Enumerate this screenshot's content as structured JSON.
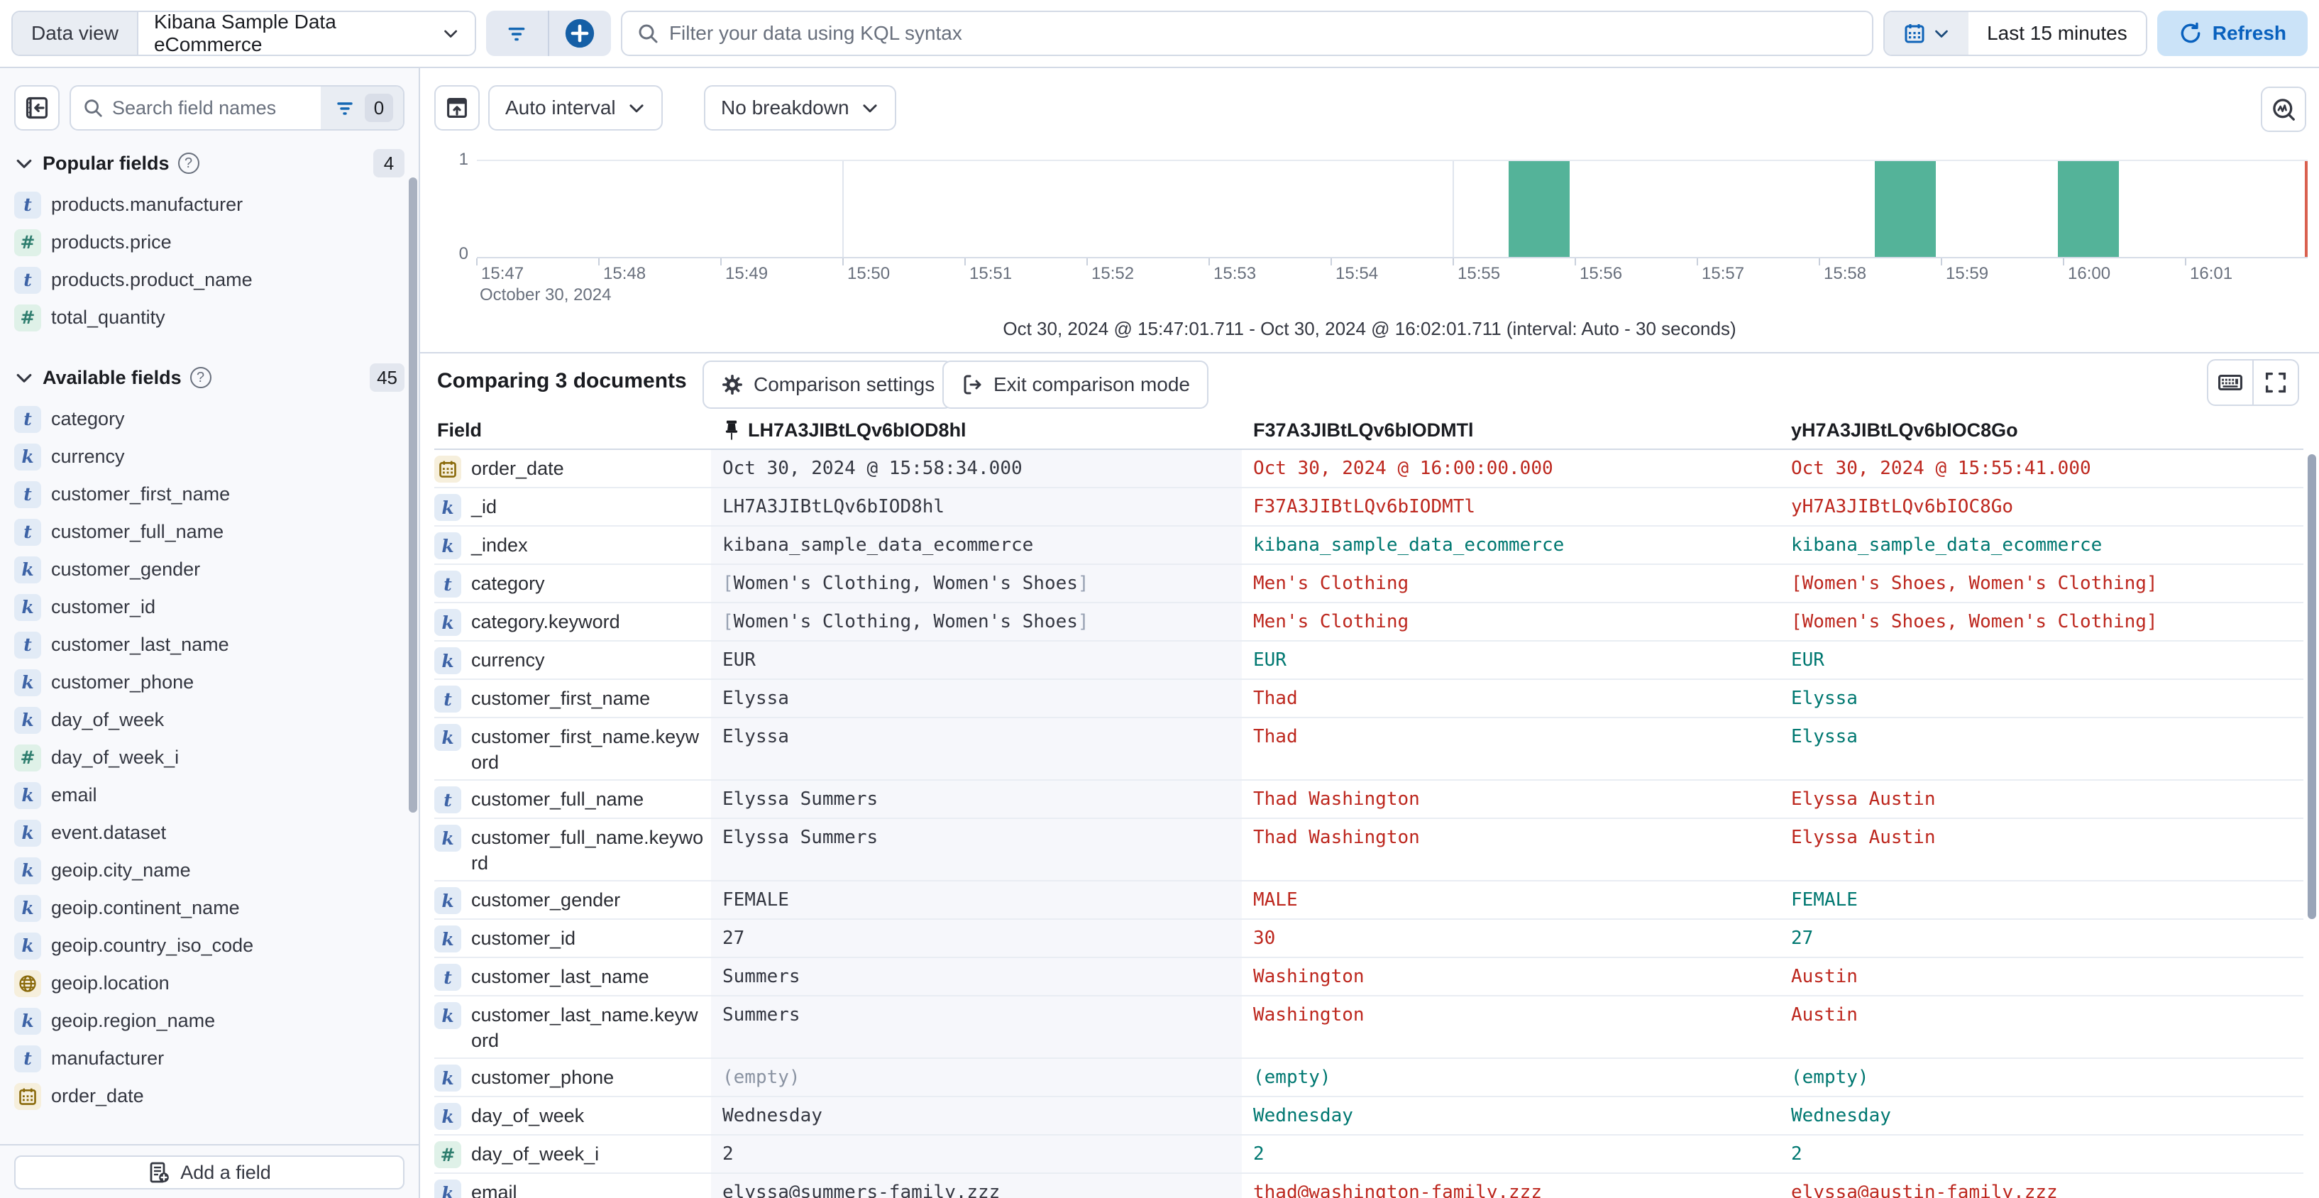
{
  "top_bar": {
    "data_view_label": "Data view",
    "data_view_value": "Kibana Sample Data eCommerce",
    "search_placeholder": "Filter your data using KQL syntax",
    "time_range": "Last 15 minutes",
    "refresh_label": "Refresh"
  },
  "sidebar": {
    "search_placeholder": "Search field names",
    "filter_count": "0",
    "popular": {
      "title": "Popular fields",
      "count": "4",
      "fields": [
        {
          "type": "text",
          "name": "products.manufacturer"
        },
        {
          "type": "number",
          "name": "products.price"
        },
        {
          "type": "text",
          "name": "products.product_name"
        },
        {
          "type": "number",
          "name": "total_quantity"
        }
      ]
    },
    "available": {
      "title": "Available fields",
      "count": "45",
      "fields": [
        {
          "type": "text",
          "name": "category"
        },
        {
          "type": "keyword",
          "name": "currency"
        },
        {
          "type": "text",
          "name": "customer_first_name"
        },
        {
          "type": "text",
          "name": "customer_full_name"
        },
        {
          "type": "keyword",
          "name": "customer_gender"
        },
        {
          "type": "keyword",
          "name": "customer_id"
        },
        {
          "type": "text",
          "name": "customer_last_name"
        },
        {
          "type": "keyword",
          "name": "customer_phone"
        },
        {
          "type": "keyword",
          "name": "day_of_week"
        },
        {
          "type": "number",
          "name": "day_of_week_i"
        },
        {
          "type": "keyword",
          "name": "email"
        },
        {
          "type": "keyword",
          "name": "event.dataset"
        },
        {
          "type": "keyword",
          "name": "geoip.city_name"
        },
        {
          "type": "keyword",
          "name": "geoip.continent_name"
        },
        {
          "type": "keyword",
          "name": "geoip.country_iso_code"
        },
        {
          "type": "geo",
          "name": "geoip.location"
        },
        {
          "type": "keyword",
          "name": "geoip.region_name"
        },
        {
          "type": "text",
          "name": "manufacturer"
        },
        {
          "type": "date",
          "name": "order_date"
        }
      ]
    },
    "add_field_label": "Add a field"
  },
  "chart": {
    "interval_label": "Auto interval",
    "breakdown_label": "No breakdown",
    "caption": "Oct 30, 2024 @ 15:47:01.711 - Oct 30, 2024 @ 16:02:01.711 (interval: Auto - 30 seconds)",
    "chart_data": {
      "type": "bar",
      "x_domain": [
        "15:47:01.711",
        "16:02:01.711"
      ],
      "x_ticks": [
        "15:47",
        "15:48",
        "15:49",
        "15:50",
        "15:51",
        "15:52",
        "15:53",
        "15:54",
        "15:55",
        "15:56",
        "15:57",
        "15:58",
        "15:59",
        "16:00",
        "16:01"
      ],
      "x_date_label": "October 30, 2024",
      "y_ticks": [
        "1",
        "0"
      ],
      "ylim": [
        0,
        1
      ],
      "interval": "Auto - 30 seconds",
      "buckets": [
        {
          "start": "15:55:30",
          "count": 1
        },
        {
          "start": "15:58:30",
          "count": 1
        },
        {
          "start": "16:00:00",
          "count": 1
        }
      ],
      "bucket_width_sec": 30,
      "gridline_ticks": [
        "15:50",
        "15:55",
        "16:00"
      ],
      "bar_color": "#54B399",
      "now_line_color": "#D9604F"
    }
  },
  "comparison": {
    "title": "Comparing 3 documents",
    "settings_label": "Comparison settings",
    "exit_label": "Exit comparison mode",
    "columns": [
      "Field",
      "LH7A3JIBtLQv6bIOD8hl",
      "F37A3JIBtLQv6bIODMTl",
      "yH7A3JIBtLQv6bIOC8Go"
    ],
    "rows": [
      {
        "type": "date",
        "field": "order_date",
        "cells": [
          {
            "v": "Oct 30, 2024 @ 15:58:34.000",
            "c": "base"
          },
          {
            "v": "Oct 30, 2024 @ 16:00:00.000",
            "c": "diff"
          },
          {
            "v": "Oct 30, 2024 @ 15:55:41.000",
            "c": "diff"
          }
        ]
      },
      {
        "type": "keyword",
        "field": "_id",
        "cells": [
          {
            "v": "LH7A3JIBtLQv6bIOD8hl",
            "c": "base"
          },
          {
            "v": "F37A3JIBtLQv6bIODMTl",
            "c": "diff"
          },
          {
            "v": "yH7A3JIBtLQv6bIOC8Go",
            "c": "diff"
          }
        ]
      },
      {
        "type": "keyword",
        "field": "_index",
        "cells": [
          {
            "v": "kibana_sample_data_ecommerce",
            "c": "base"
          },
          {
            "v": "kibana_sample_data_ecommerce",
            "c": "match"
          },
          {
            "v": "kibana_sample_data_ecommerce",
            "c": "match"
          }
        ]
      },
      {
        "type": "text",
        "field": "category",
        "cells": [
          {
            "v": "Women's Clothing, Women's Shoes",
            "c": "base",
            "bracket": true
          },
          {
            "v": "Men's Clothing",
            "c": "diff"
          },
          {
            "v": "[Women's Shoes, Women's Clothing]",
            "c": "diff"
          }
        ]
      },
      {
        "type": "keyword",
        "field": "category.keyword",
        "cells": [
          {
            "v": "Women's Clothing, Women's Shoes",
            "c": "base",
            "bracket": true
          },
          {
            "v": "Men's Clothing",
            "c": "diff"
          },
          {
            "v": "[Women's Shoes, Women's Clothing]",
            "c": "diff"
          }
        ]
      },
      {
        "type": "keyword",
        "field": "currency",
        "cells": [
          {
            "v": "EUR",
            "c": "base"
          },
          {
            "v": "EUR",
            "c": "match"
          },
          {
            "v": "EUR",
            "c": "match"
          }
        ]
      },
      {
        "type": "text",
        "field": "customer_first_name",
        "cells": [
          {
            "v": "Elyssa",
            "c": "base"
          },
          {
            "v": "Thad",
            "c": "diff"
          },
          {
            "v": "Elyssa",
            "c": "match"
          }
        ]
      },
      {
        "type": "keyword",
        "field": "customer_first_name.keyword",
        "cells": [
          {
            "v": "Elyssa",
            "c": "base"
          },
          {
            "v": "Thad",
            "c": "diff"
          },
          {
            "v": "Elyssa",
            "c": "match"
          }
        ]
      },
      {
        "type": "text",
        "field": "customer_full_name",
        "cells": [
          {
            "v": "Elyssa Summers",
            "c": "base"
          },
          {
            "v": "Thad Washington",
            "c": "diff"
          },
          {
            "v": "Elyssa Austin",
            "c": "diff"
          }
        ]
      },
      {
        "type": "keyword",
        "field": "customer_full_name.keyword",
        "cells": [
          {
            "v": "Elyssa Summers",
            "c": "base"
          },
          {
            "v": "Thad Washington",
            "c": "diff"
          },
          {
            "v": "Elyssa Austin",
            "c": "diff"
          }
        ]
      },
      {
        "type": "keyword",
        "field": "customer_gender",
        "cells": [
          {
            "v": "FEMALE",
            "c": "base"
          },
          {
            "v": "MALE",
            "c": "diff"
          },
          {
            "v": "FEMALE",
            "c": "match"
          }
        ]
      },
      {
        "type": "keyword",
        "field": "customer_id",
        "cells": [
          {
            "v": "27",
            "c": "base"
          },
          {
            "v": "30",
            "c": "diff"
          },
          {
            "v": "27",
            "c": "match"
          }
        ]
      },
      {
        "type": "text",
        "field": "customer_last_name",
        "cells": [
          {
            "v": "Summers",
            "c": "base"
          },
          {
            "v": "Washington",
            "c": "diff"
          },
          {
            "v": "Austin",
            "c": "diff"
          }
        ]
      },
      {
        "type": "keyword",
        "field": "customer_last_name.keyword",
        "cells": [
          {
            "v": "Summers",
            "c": "base"
          },
          {
            "v": "Washington",
            "c": "diff"
          },
          {
            "v": "Austin",
            "c": "diff"
          }
        ]
      },
      {
        "type": "keyword",
        "field": "customer_phone",
        "cells": [
          {
            "v": "(empty)",
            "c": "empty"
          },
          {
            "v": "(empty)",
            "c": "match"
          },
          {
            "v": "(empty)",
            "c": "match"
          }
        ]
      },
      {
        "type": "keyword",
        "field": "day_of_week",
        "cells": [
          {
            "v": "Wednesday",
            "c": "base"
          },
          {
            "v": "Wednesday",
            "c": "match"
          },
          {
            "v": "Wednesday",
            "c": "match"
          }
        ]
      },
      {
        "type": "number",
        "field": "day_of_week_i",
        "cells": [
          {
            "v": "2",
            "c": "base"
          },
          {
            "v": "2",
            "c": "match"
          },
          {
            "v": "2",
            "c": "match"
          }
        ]
      },
      {
        "type": "keyword",
        "field": "email",
        "cells": [
          {
            "v": "elyssa@summers-family.zzz",
            "c": "base"
          },
          {
            "v": "thad@washington-family.zzz",
            "c": "diff"
          },
          {
            "v": "elyssa@austin-family.zzz",
            "c": "diff"
          }
        ]
      }
    ]
  }
}
